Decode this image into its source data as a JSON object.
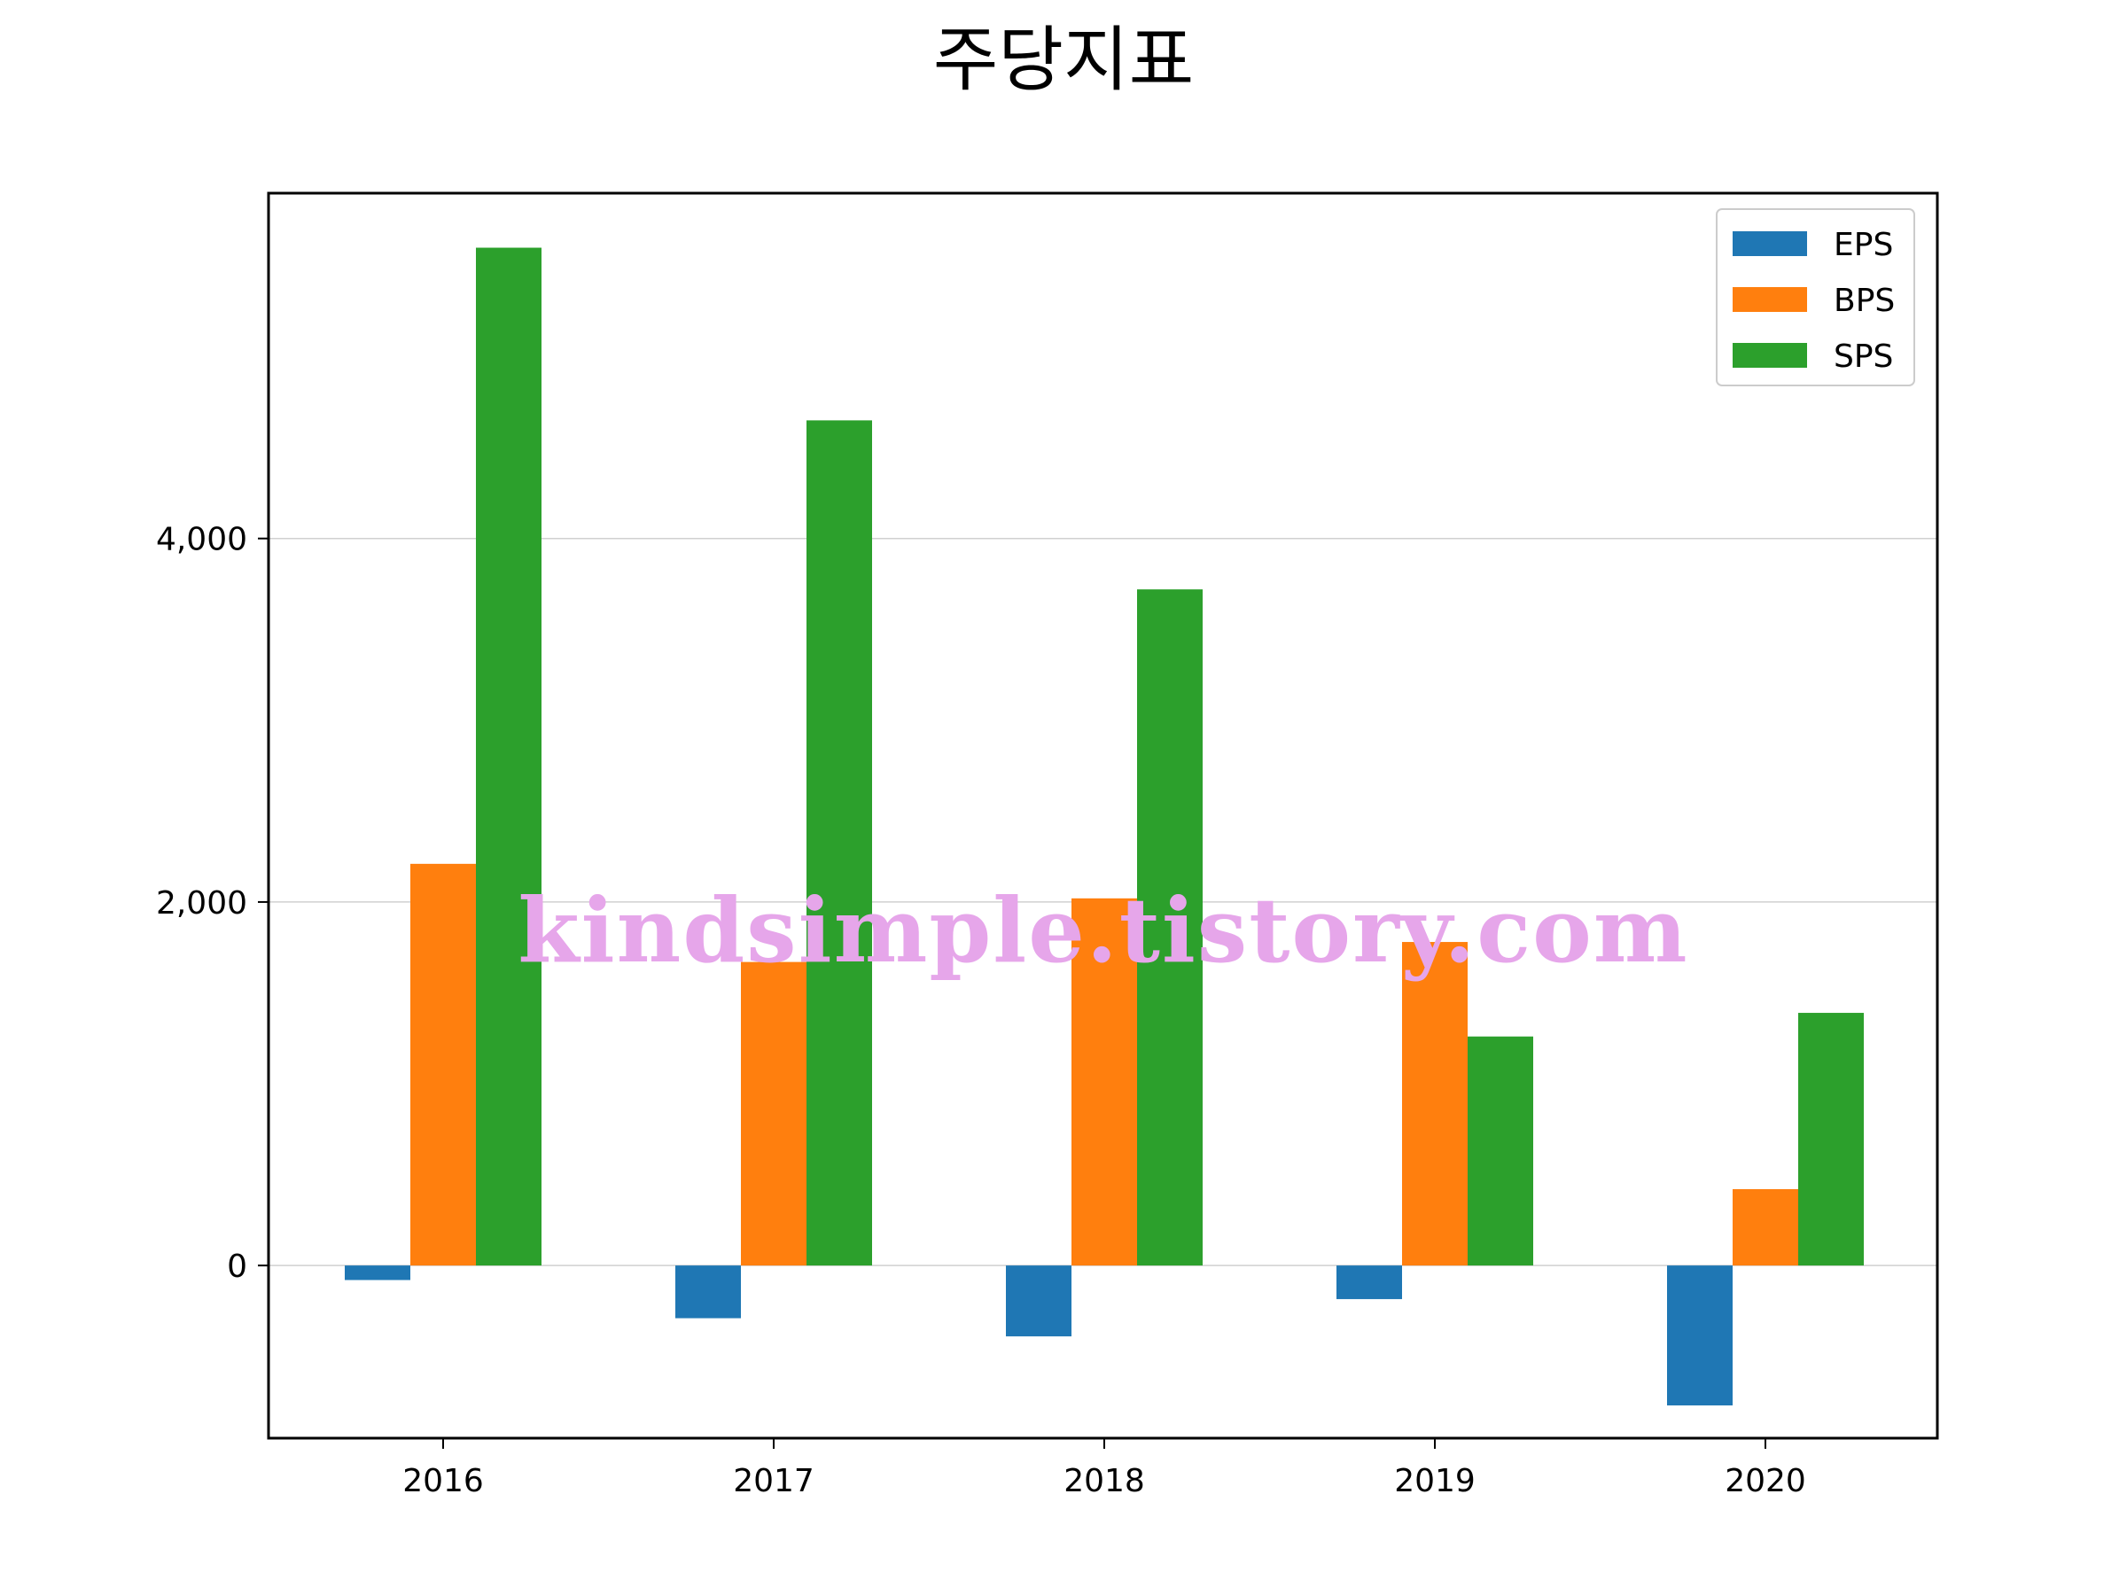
{
  "chart_data": {
    "type": "bar",
    "title": "주당지표",
    "xlabel": "",
    "ylabel": "",
    "categories": [
      "2016",
      "2017",
      "2018",
      "2019",
      "2020"
    ],
    "series": [
      {
        "name": "EPS",
        "color": "#1f77b4",
        "values": [
          -80,
          -290,
          -390,
          -185,
          -770
        ]
      },
      {
        "name": "BPS",
        "color": "#ff7f0e",
        "values": [
          2210,
          1670,
          2020,
          1780,
          420
        ]
      },
      {
        "name": "SPS",
        "color": "#2ca02c",
        "values": [
          5600,
          4650,
          3720,
          1260,
          1390
        ]
      }
    ],
    "ylim": [
      -950,
      5900
    ],
    "yticks": [
      0,
      2000,
      4000
    ],
    "ytick_labels": [
      "0",
      "2,000",
      "4,000"
    ],
    "grid": true,
    "legend_position": "top-right",
    "watermark": "kindsimple.tistory.com"
  }
}
